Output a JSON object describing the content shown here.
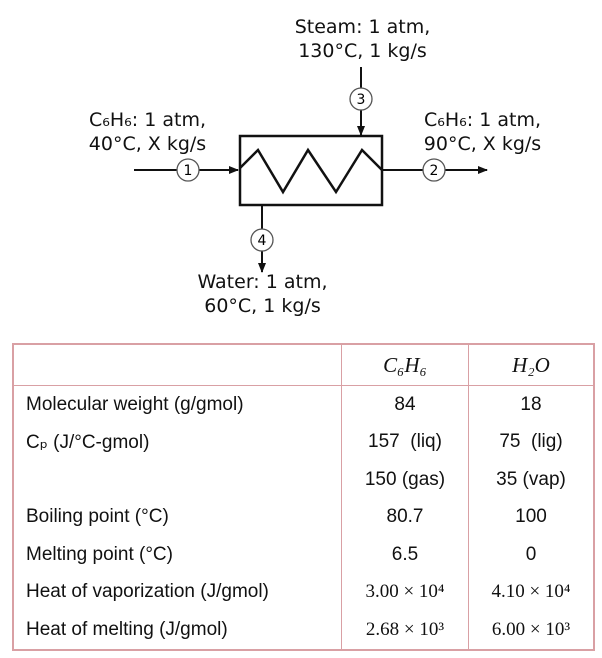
{
  "diagram": {
    "streams": [
      {
        "id": "1",
        "label_line1": "C₆H₆: 1 atm,",
        "label_line2": "40°C, X kg/s"
      },
      {
        "id": "2",
        "label_line1": "C₆H₆: 1 atm,",
        "label_line2": "90°C, X kg/s"
      },
      {
        "id": "3",
        "label_line1": "Steam: 1 atm,",
        "label_line2": "130°C, 1 kg/s"
      },
      {
        "id": "4",
        "label_line1": "Water: 1 atm,",
        "label_line2": "60°C, 1 kg/s"
      }
    ]
  },
  "table": {
    "headers": [
      "",
      "C₆H₆",
      "H₂O"
    ],
    "rows": [
      [
        "Molecular weight (g/gmol)",
        "84",
        "18"
      ],
      [
        "Cₚ (J/°C-gmol)",
        "157  (liq)",
        "75  (lig)"
      ],
      [
        "",
        "150 (gas)",
        "35 (vap)"
      ],
      [
        "Boiling point (°C)",
        "80.7",
        "100"
      ],
      [
        "Melting point (°C)",
        "6.5",
        "0"
      ],
      [
        "Heat of vaporization (J/gmol)",
        "3.00 × 10⁴",
        "4.10 × 10⁴"
      ],
      [
        "Heat of melting (J/gmol)",
        "2.68 × 10³",
        "6.00 × 10³"
      ]
    ],
    "border_color": "#d9a0a4"
  }
}
